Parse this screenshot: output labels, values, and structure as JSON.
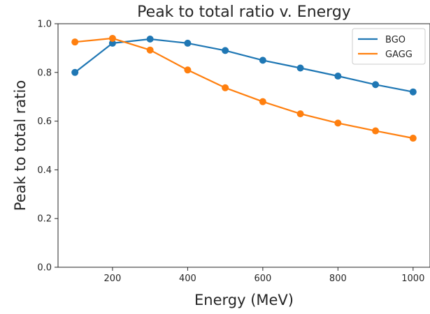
{
  "chart_data": {
    "type": "line",
    "title": "Peak to total ratio v. Energy",
    "xlabel": "Energy (MeV)",
    "ylabel": "Peak to total ratio",
    "x": [
      100,
      200,
      300,
      400,
      500,
      600,
      700,
      800,
      900,
      1000
    ],
    "xlim": [
      55,
      1045
    ],
    "ylim": [
      0.0,
      1.0
    ],
    "xticks": [
      200,
      400,
      600,
      800,
      1000
    ],
    "yticks": [
      0.0,
      0.2,
      0.4,
      0.6,
      0.8,
      1.0
    ],
    "xtick_labels": [
      "200",
      "400",
      "600",
      "800",
      "1000"
    ],
    "ytick_labels": [
      "0.0",
      "0.2",
      "0.4",
      "0.6",
      "0.8",
      "1.0"
    ],
    "grid": false,
    "legend_position": "top-right",
    "series": [
      {
        "name": "BGO",
        "color": "#1f77b4",
        "values": [
          0.8,
          0.92,
          0.937,
          0.92,
          0.89,
          0.85,
          0.818,
          0.785,
          0.75,
          0.72
        ]
      },
      {
        "name": "GAGG",
        "color": "#ff7f0e",
        "values": [
          0.925,
          0.94,
          0.892,
          0.81,
          0.737,
          0.68,
          0.63,
          0.592,
          0.56,
          0.53
        ]
      }
    ]
  }
}
